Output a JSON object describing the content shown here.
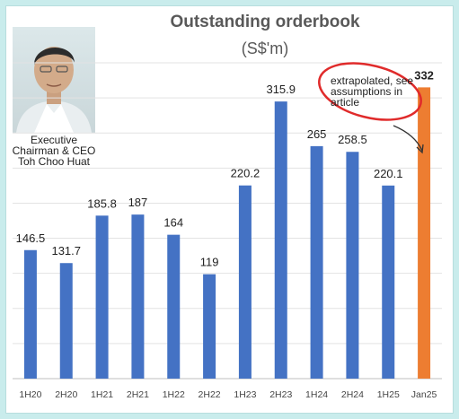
{
  "title": "Outstanding orderbook",
  "subtitle": "(S$'m)",
  "photo_caption": "Executive Chairman & CEO Toh Choo Huat",
  "annotation": "extrapolated, see assumptions in article",
  "colors": {
    "bar_blue": "#4472c4",
    "bar_orange": "#ed7d31",
    "annotation_red": "#e02b2b",
    "background": "#c9ecec"
  },
  "chart_data": {
    "type": "bar",
    "title": "Outstanding orderbook",
    "ylabel": "",
    "xlabel": "",
    "unit": "S$'m",
    "categories": [
      "1H20",
      "2H20",
      "1H21",
      "2H21",
      "1H22",
      "2H22",
      "1H23",
      "2H23",
      "1H24",
      "2H24",
      "1H25",
      "Jan25"
    ],
    "values": [
      146.5,
      131.7,
      185.8,
      187,
      164,
      119,
      220.2,
      315.9,
      265,
      258.5,
      220.1,
      332
    ],
    "labels": [
      "146.5",
      "131.7",
      "185.8",
      "187",
      "164",
      "119",
      "220.2",
      "315.9",
      "265",
      "258.5",
      "220.1",
      "332"
    ],
    "highlight_index": 11,
    "ylim": [
      0,
      360
    ],
    "grid": true
  }
}
